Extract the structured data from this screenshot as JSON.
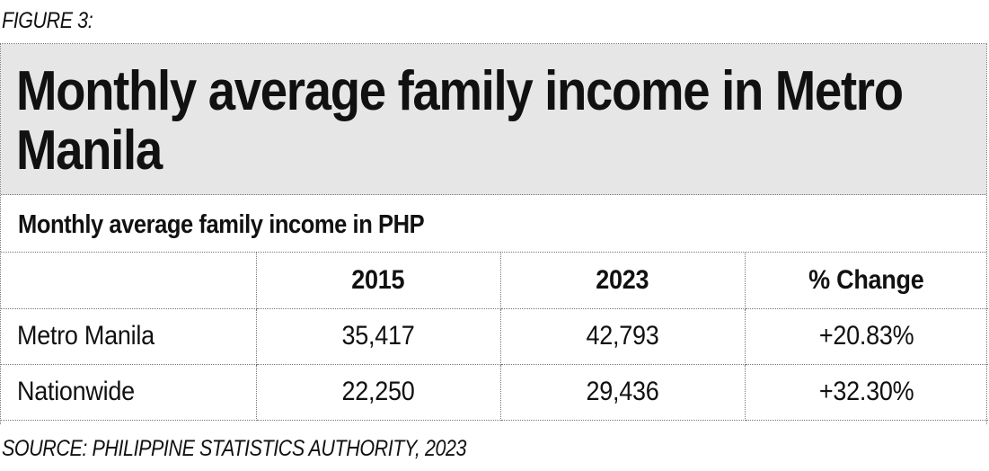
{
  "figure_label": "FIGURE 3:",
  "title": "Monthly average family income in Metro Manila",
  "subtitle": "Monthly average family income in PHP",
  "source": "SOURCE: PHILIPPINE STATISTICS AUTHORITY, 2023",
  "colors": {
    "title_band_background": "#e6e6e6",
    "text": "#111111",
    "border": "#777777"
  },
  "chart_data": {
    "type": "table",
    "title": "Monthly average family income in Metro Manila",
    "subtitle": "Monthly average family income in PHP",
    "columns": [
      "",
      "2015",
      "2023",
      "% Change"
    ],
    "rows": [
      {
        "label": "Metro Manila",
        "values": [
          "35,417",
          "42,793",
          "+20.83%"
        ]
      },
      {
        "label": "Nationwide",
        "values": [
          "22,250",
          "29,436",
          "+32.30%"
        ]
      }
    ],
    "series": [
      {
        "name": "Metro Manila",
        "values": [
          35417,
          42793
        ],
        "change_percent": 20.83
      },
      {
        "name": "Nationwide",
        "values": [
          22250,
          29436
        ],
        "change_percent": 32.3
      }
    ],
    "categories": [
      "2015",
      "2023"
    ]
  }
}
